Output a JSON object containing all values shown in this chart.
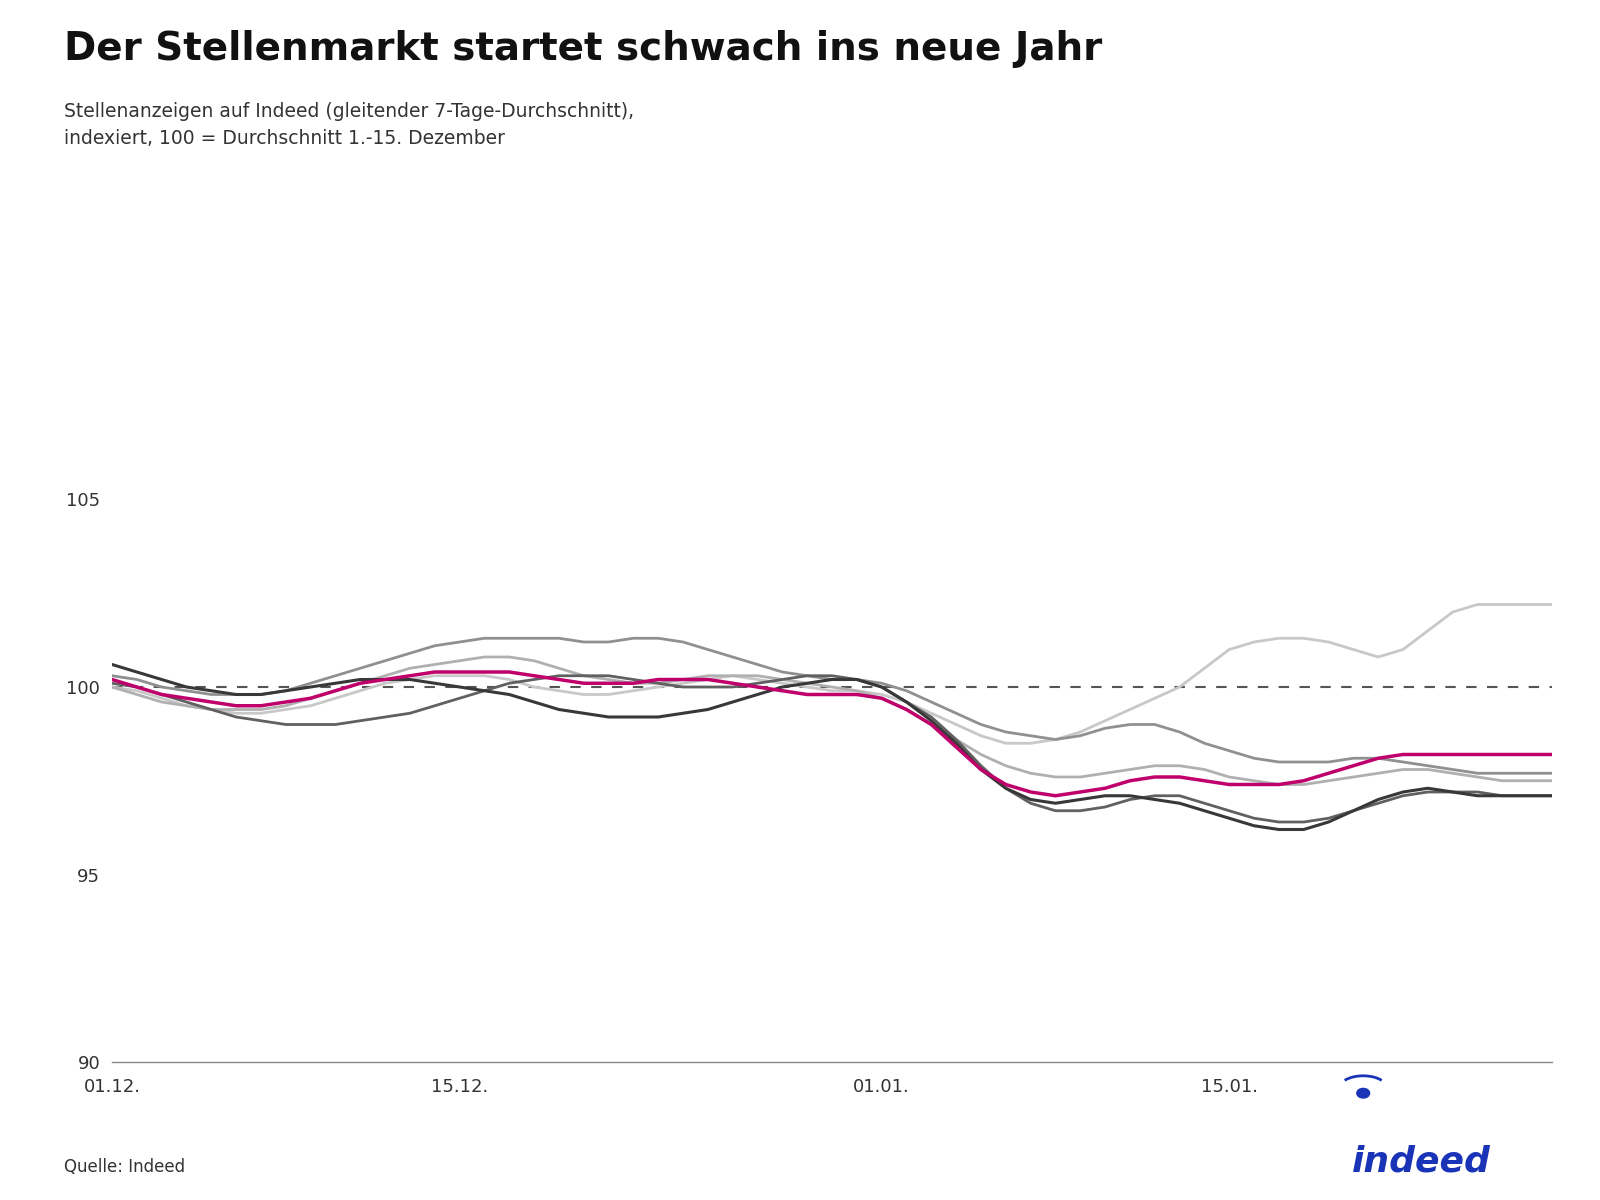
{
  "title": "Der Stellenmarkt startet schwach ins neue Jahr",
  "subtitle_line1": "Stellenanzeigen auf Indeed (gleitender 7-Tage-Durchschnitt),",
  "subtitle_line2": "indexiert, 100 = Durchschnitt 1.-15. Dezember",
  "source": "Quelle: Indeed",
  "ylim": [
    90,
    106
  ],
  "yticks": [
    90,
    95,
    100,
    105
  ],
  "xtick_labels": [
    "01.12.",
    "15.12.",
    "01.01.",
    "15.01."
  ],
  "xtick_positions": [
    0,
    14,
    31,
    45
  ],
  "series": {
    "2019/20": {
      "color": "#c8c8c8",
      "linewidth": 2.0,
      "values": [
        100.0,
        99.9,
        99.7,
        99.5,
        99.4,
        99.3,
        99.3,
        99.4,
        99.5,
        99.7,
        99.9,
        100.1,
        100.2,
        100.3,
        100.3,
        100.3,
        100.2,
        100.0,
        99.9,
        99.8,
        99.8,
        99.9,
        100.0,
        100.1,
        100.2,
        100.3,
        100.2,
        100.1,
        100.0,
        99.9,
        99.9,
        99.8,
        99.6,
        99.3,
        99.0,
        98.7,
        98.5,
        98.5,
        98.6,
        98.8,
        99.1,
        99.4,
        99.7,
        100.0,
        100.5,
        101.0,
        101.2,
        101.3,
        101.3,
        101.2,
        101.0,
        100.8,
        101.0,
        101.5,
        102.0,
        102.2,
        102.2,
        102.2,
        102.2
      ]
    },
    "2020/21": {
      "color": "#b0b0b0",
      "linewidth": 2.0,
      "values": [
        100.0,
        99.8,
        99.6,
        99.5,
        99.4,
        99.4,
        99.4,
        99.5,
        99.7,
        99.9,
        100.1,
        100.3,
        100.5,
        100.6,
        100.7,
        100.8,
        100.8,
        100.7,
        100.5,
        100.3,
        100.2,
        100.1,
        100.1,
        100.2,
        100.3,
        100.3,
        100.3,
        100.2,
        100.1,
        100.0,
        99.9,
        99.7,
        99.4,
        99.0,
        98.6,
        98.2,
        97.9,
        97.7,
        97.6,
        97.6,
        97.7,
        97.8,
        97.9,
        97.9,
        97.8,
        97.6,
        97.5,
        97.4,
        97.4,
        97.5,
        97.6,
        97.7,
        97.8,
        97.8,
        97.7,
        97.6,
        97.5,
        97.5,
        97.5
      ]
    },
    "2021/22": {
      "color": "#909090",
      "linewidth": 2.0,
      "values": [
        100.3,
        100.2,
        100.0,
        99.9,
        99.8,
        99.8,
        99.8,
        99.9,
        100.1,
        100.3,
        100.5,
        100.7,
        100.9,
        101.1,
        101.2,
        101.3,
        101.3,
        101.3,
        101.3,
        101.2,
        101.2,
        101.3,
        101.3,
        101.2,
        101.0,
        100.8,
        100.6,
        100.4,
        100.3,
        100.2,
        100.2,
        100.1,
        99.9,
        99.6,
        99.3,
        99.0,
        98.8,
        98.7,
        98.6,
        98.7,
        98.9,
        99.0,
        99.0,
        98.8,
        98.5,
        98.3,
        98.1,
        98.0,
        98.0,
        98.0,
        98.1,
        98.1,
        98.0,
        97.9,
        97.8,
        97.7,
        97.7,
        97.7,
        97.7
      ]
    },
    "2022/23": {
      "color": "#606060",
      "linewidth": 2.0,
      "values": [
        100.1,
        100.0,
        99.8,
        99.6,
        99.4,
        99.2,
        99.1,
        99.0,
        99.0,
        99.0,
        99.1,
        99.2,
        99.3,
        99.5,
        99.7,
        99.9,
        100.1,
        100.2,
        100.3,
        100.3,
        100.3,
        100.2,
        100.1,
        100.0,
        100.0,
        100.0,
        100.1,
        100.2,
        100.3,
        100.3,
        100.2,
        100.0,
        99.6,
        99.2,
        98.6,
        97.9,
        97.3,
        96.9,
        96.7,
        96.7,
        96.8,
        97.0,
        97.1,
        97.1,
        96.9,
        96.7,
        96.5,
        96.4,
        96.4,
        96.5,
        96.7,
        96.9,
        97.1,
        97.2,
        97.2,
        97.2,
        97.1,
        97.1,
        97.1
      ]
    },
    "2023/24": {
      "color": "#383838",
      "linewidth": 2.2,
      "values": [
        100.6,
        100.4,
        100.2,
        100.0,
        99.9,
        99.8,
        99.8,
        99.9,
        100.0,
        100.1,
        100.2,
        100.2,
        100.2,
        100.1,
        100.0,
        99.9,
        99.8,
        99.6,
        99.4,
        99.3,
        99.2,
        99.2,
        99.2,
        99.3,
        99.4,
        99.6,
        99.8,
        100.0,
        100.1,
        100.2,
        100.2,
        100.0,
        99.6,
        99.1,
        98.5,
        97.8,
        97.3,
        97.0,
        96.9,
        97.0,
        97.1,
        97.1,
        97.0,
        96.9,
        96.7,
        96.5,
        96.3,
        96.2,
        96.2,
        96.4,
        96.7,
        97.0,
        97.2,
        97.3,
        97.2,
        97.1,
        97.1,
        97.1,
        97.1
      ]
    },
    "2024/25": {
      "color": "#c0006a",
      "linewidth": 2.5,
      "values": [
        100.2,
        100.0,
        99.8,
        99.7,
        99.6,
        99.5,
        99.5,
        99.6,
        99.7,
        99.9,
        100.1,
        100.2,
        100.3,
        100.4,
        100.4,
        100.4,
        100.4,
        100.3,
        100.2,
        100.1,
        100.1,
        100.1,
        100.2,
        100.2,
        100.2,
        100.1,
        100.0,
        99.9,
        99.8,
        99.8,
        99.8,
        99.7,
        99.4,
        99.0,
        98.4,
        97.8,
        97.4,
        97.2,
        97.1,
        97.2,
        97.3,
        97.5,
        97.6,
        97.6,
        97.5,
        97.4,
        97.4,
        97.4,
        97.5,
        97.7,
        97.9,
        98.1,
        98.2,
        98.2,
        98.2,
        98.2,
        98.2,
        98.2,
        98.2
      ]
    }
  },
  "background_color": "#ffffff",
  "title_fontsize": 28,
  "subtitle_fontsize": 13.5,
  "axis_fontsize": 13,
  "legend_fontsize": 13,
  "source_fontsize": 12,
  "title_color": "#111111",
  "axis_color": "#333333",
  "dashed_line_y": 100,
  "num_days": 59,
  "indeed_blue": "#1a34b8",
  "indeed_logo_text": "indeed"
}
